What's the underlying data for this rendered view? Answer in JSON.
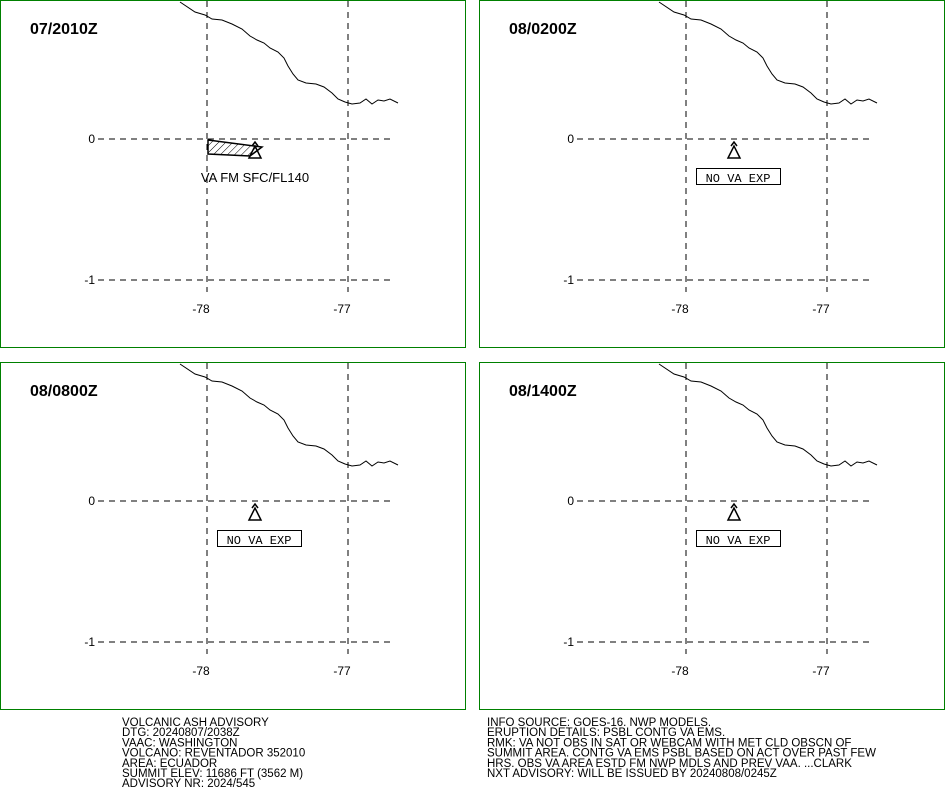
{
  "panels": [
    {
      "title": "07/2010Z",
      "annotation": "VA FM SFC/FL140",
      "ash": true
    },
    {
      "title": "08/0200Z",
      "annotation": "NO VA EXP",
      "ash": false
    },
    {
      "title": "08/0800Z",
      "annotation": "NO VA EXP",
      "ash": false
    },
    {
      "title": "08/1400Z",
      "annotation": "NO VA EXP",
      "ash": false
    }
  ],
  "xticks": [
    -78,
    -77
  ],
  "yticks": [
    0,
    -1
  ],
  "info_left": [
    "VOLCANIC ASH ADVISORY",
    "DTG: 20240807/2038Z",
    "VAAC: WASHINGTON",
    "VOLCANO: REVENTADOR 352010",
    "AREA: ECUADOR",
    "SUMMIT ELEV: 11686 FT (3562 M)",
    "ADVISORY NR: 2024/545"
  ],
  "info_right": [
    "INFO SOURCE: GOES-16. NWP MODELS.",
    "ERUPTION DETAILS: PSBL CONTG VA EMS.",
    "RMK: VA NOT OBS IN SAT OR WEBCAM WITH MET CLD OBSCN OF",
    "SUMMIT AREA. CONTG VA EMS PSBL BASED ON ACT OVER PAST FEW",
    "HRS. OBS VA AREA ESTD FM NWP MDLS AND PREV VAA. ...CLARK",
    "NXT ADVISORY: WILL BE ISSUED BY 20240808/0245Z"
  ]
}
